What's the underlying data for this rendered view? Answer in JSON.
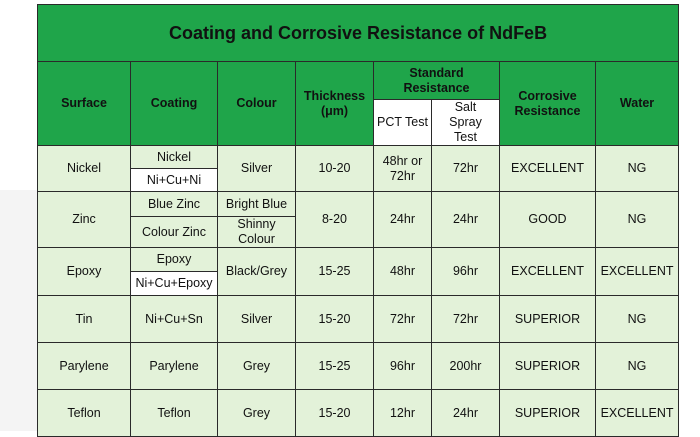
{
  "title": "Coating and Corrosive Resistance of NdFeB",
  "headers": {
    "surface": "Surface",
    "coating": "Coating",
    "colour": "Colour",
    "thickness": "Thickness\n(μm)",
    "standard_resistance": "Standard Resistance",
    "pct_test": "PCT Test",
    "salt_spray_test": "Salt Spray Test",
    "corrosive_resistance": "Corrosive Resistance",
    "water": "Water"
  },
  "rows": [
    {
      "surface": "Nickel",
      "coating": [
        "Nickel",
        "Ni+Cu+Ni"
      ],
      "colour": "Silver",
      "thickness": "10-20",
      "pct": "48hr or 72hr",
      "salt": "72hr",
      "corrosive": "EXCELLENT",
      "water": "NG"
    },
    {
      "surface": "Zinc",
      "coating": [
        "Blue Zinc",
        "Colour Zinc"
      ],
      "colour": [
        "Bright Blue",
        "Shinny Colour"
      ],
      "thickness": "8-20",
      "pct": "24hr",
      "salt": "24hr",
      "corrosive": "GOOD",
      "water": "NG"
    },
    {
      "surface": "Epoxy",
      "coating": [
        "Epoxy",
        "Ni+Cu+Epoxy"
      ],
      "colour": "Black/Grey",
      "thickness": "15-25",
      "pct": "48hr",
      "salt": "96hr",
      "corrosive": "EXCELLENT",
      "water": "EXCELLENT"
    },
    {
      "surface": "Tin",
      "coating": "Ni+Cu+Sn",
      "colour": "Silver",
      "thickness": "15-20",
      "pct": "72hr",
      "salt": "72hr",
      "corrosive": "SUPERIOR",
      "water": "NG"
    },
    {
      "surface": "Parylene",
      "coating": "Parylene",
      "colour": "Grey",
      "thickness": "15-25",
      "pct": "96hr",
      "salt": "200hr",
      "corrosive": "SUPERIOR",
      "water": "NG"
    },
    {
      "surface": "Teflon",
      "coating": "Teflon",
      "colour": "Grey",
      "thickness": "15-20",
      "pct": "12hr",
      "salt": "24hr",
      "corrosive": "SUPERIOR",
      "water": "EXCELLENT"
    }
  ]
}
